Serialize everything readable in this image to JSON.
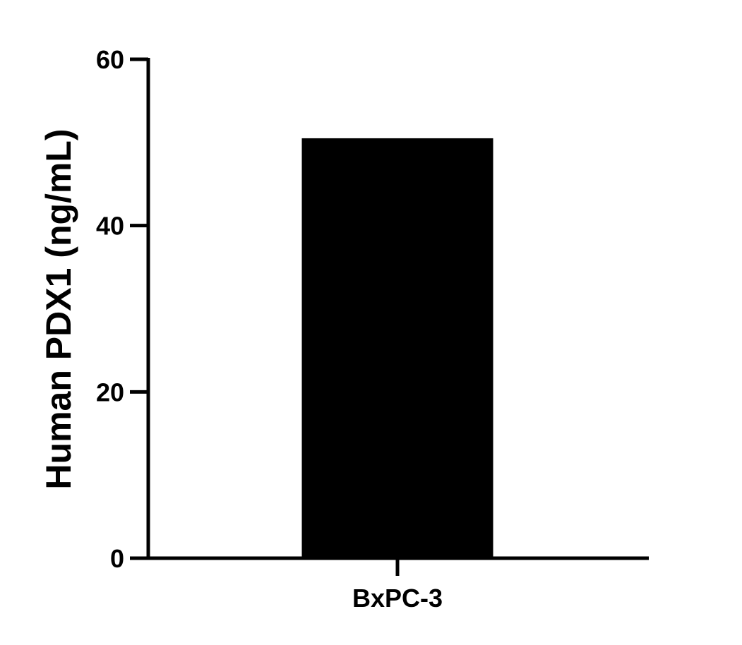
{
  "chart_data": {
    "type": "bar",
    "title": "",
    "xlabel": "",
    "ylabel": "Human PDX1 (ng/mL)",
    "categories": [
      "BxPC-3"
    ],
    "values": [
      50.5
    ],
    "ylim": [
      0,
      60
    ],
    "yticks": [
      0,
      20,
      40,
      60
    ],
    "grid": false,
    "bar_color": "#000000"
  }
}
